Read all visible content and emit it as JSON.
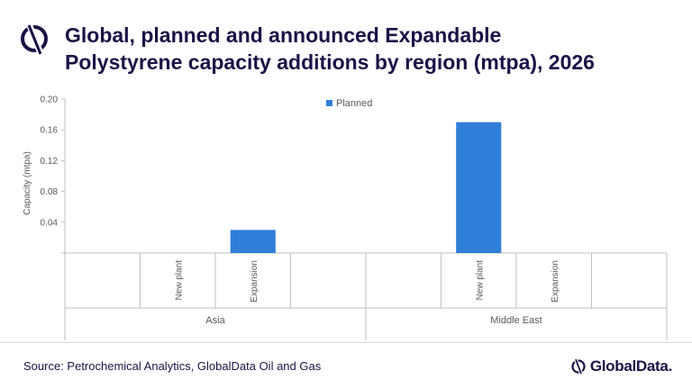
{
  "header": {
    "title_line1": "Global, planned and announced Expandable",
    "title_line2": "Polystyrene capacity additions by region (mtpa), 2026",
    "logo_icon": "globaldata-mark-icon"
  },
  "chart_data": {
    "type": "bar",
    "title": "Global, planned and announced Expandable Polystyrene capacity additions by region (mtpa), 2026",
    "ylabel": "Capacity (mtpa)",
    "ylim": [
      0,
      0.2
    ],
    "yticks": [
      "0.20",
      "0.16",
      "0.12",
      "0.08",
      "0.04"
    ],
    "legend": {
      "position": "top",
      "entries": [
        "Planned"
      ]
    },
    "series": [
      {
        "name": "Planned",
        "color": "#2f7ed8"
      }
    ],
    "groups": [
      {
        "name": "Asia",
        "categories": [
          {
            "label": "New plant",
            "value": 0
          },
          {
            "label": "Expansion",
            "value": 0.03
          }
        ]
      },
      {
        "name": "Middle East",
        "categories": [
          {
            "label": "New plant",
            "value": 0.17
          },
          {
            "label": "Expansion",
            "value": 0
          }
        ]
      }
    ]
  },
  "footer": {
    "source": "Source: Petrochemical Analytics, GlobalData Oil and Gas",
    "brand": "GlobalData."
  },
  "colors": {
    "title": "#1c1247",
    "bar": "#2f7ed8",
    "axis": "#bfbfbf",
    "text": "#595959"
  }
}
